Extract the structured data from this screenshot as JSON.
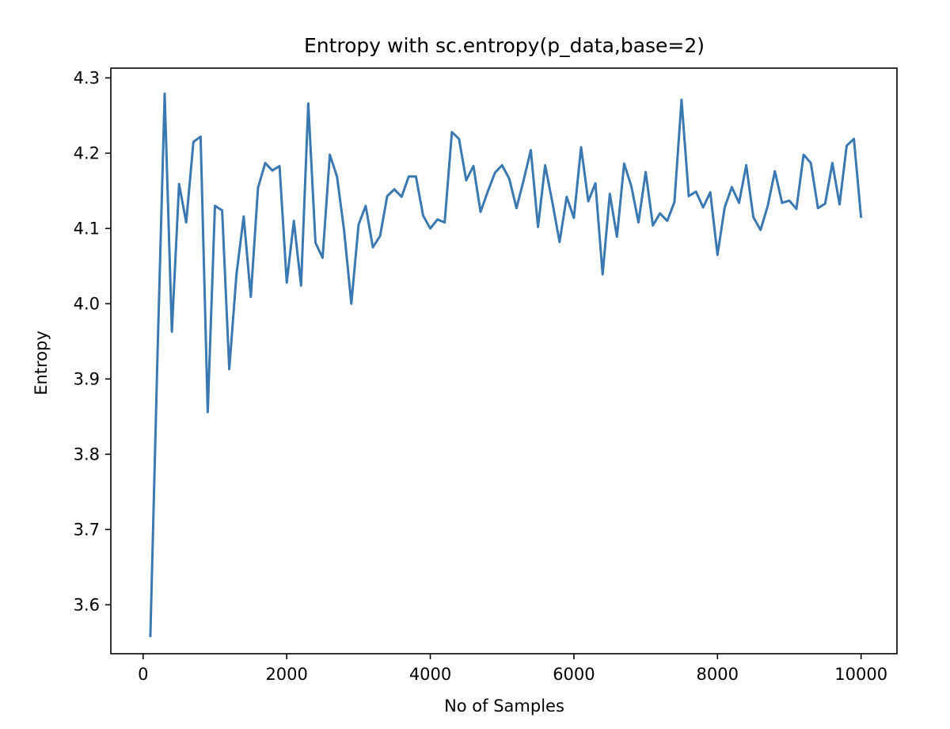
{
  "chart_data": {
    "type": "line",
    "title": "Entropy with sc.entropy(p_data,base=2)",
    "xlabel": "No of Samples",
    "ylabel": "Entropy",
    "xlim": [
      -450,
      10500
    ],
    "ylim": [
      3.535,
      4.313
    ],
    "xticks": [
      0,
      2000,
      4000,
      6000,
      8000,
      10000
    ],
    "yticks": [
      3.6,
      3.7,
      3.8,
      3.9,
      4.0,
      4.1,
      4.2,
      4.3
    ],
    "xtick_labels": [
      "0",
      "2000",
      "4000",
      "6000",
      "8000",
      "10000"
    ],
    "ytick_labels": [
      "3.6",
      "3.7",
      "3.8",
      "3.9",
      "4.0",
      "4.1",
      "4.2",
      "4.3"
    ],
    "grid": false,
    "series": [
      {
        "color": "#3a78b1",
        "x": [
          100,
          200,
          300,
          400,
          500,
          600,
          700,
          800,
          900,
          1000,
          1100,
          1200,
          1300,
          1400,
          1500,
          1600,
          1700,
          1800,
          1900,
          2000,
          2100,
          2200,
          2300,
          2400,
          2500,
          2600,
          2700,
          2800,
          2900,
          3000,
          3100,
          3200,
          3300,
          3400,
          3500,
          3600,
          3700,
          3800,
          3900,
          4000,
          4100,
          4200,
          4300,
          4400,
          4500,
          4600,
          4700,
          4800,
          4900,
          5000,
          5100,
          5200,
          5300,
          5400,
          5500,
          5600,
          5700,
          5800,
          5900,
          6000,
          6100,
          6200,
          6300,
          6400,
          6500,
          6600,
          6700,
          6800,
          6900,
          7000,
          7100,
          7200,
          7300,
          7400,
          7500,
          7600,
          7700,
          7800,
          7900,
          8000,
          8100,
          8200,
          8300,
          8400,
          8500,
          8600,
          8700,
          8800,
          8900,
          9000,
          9100,
          9200,
          9300,
          9400,
          9500,
          9600,
          9700,
          9800,
          9900,
          10000
        ],
        "y": [
          3.557,
          3.93,
          4.279,
          3.963,
          4.159,
          4.108,
          4.215,
          4.222,
          3.856,
          4.13,
          4.124,
          3.913,
          4.039,
          4.116,
          4.009,
          4.154,
          4.187,
          4.177,
          4.183,
          4.028,
          4.11,
          4.024,
          4.266,
          4.081,
          4.061,
          4.198,
          4.169,
          4.097,
          4.0,
          4.105,
          4.13,
          4.075,
          4.09,
          4.143,
          4.152,
          4.142,
          4.169,
          4.169,
          4.117,
          4.1,
          4.112,
          4.108,
          4.228,
          4.219,
          4.164,
          4.183,
          4.122,
          4.149,
          4.174,
          4.184,
          4.166,
          4.127,
          4.164,
          4.204,
          4.102,
          4.184,
          4.135,
          4.082,
          4.142,
          4.114,
          4.208,
          4.136,
          4.16,
          4.039,
          4.146,
          4.089,
          4.186,
          4.156,
          4.108,
          4.175,
          4.104,
          4.12,
          4.11,
          4.135,
          4.271,
          4.143,
          4.149,
          4.128,
          4.148,
          4.065,
          4.128,
          4.155,
          4.134,
          4.184,
          4.115,
          4.098,
          4.13,
          4.176,
          4.134,
          4.137,
          4.126,
          4.198,
          4.187,
          4.127,
          4.133,
          4.187,
          4.132,
          4.21,
          4.219,
          4.114
        ]
      }
    ]
  }
}
